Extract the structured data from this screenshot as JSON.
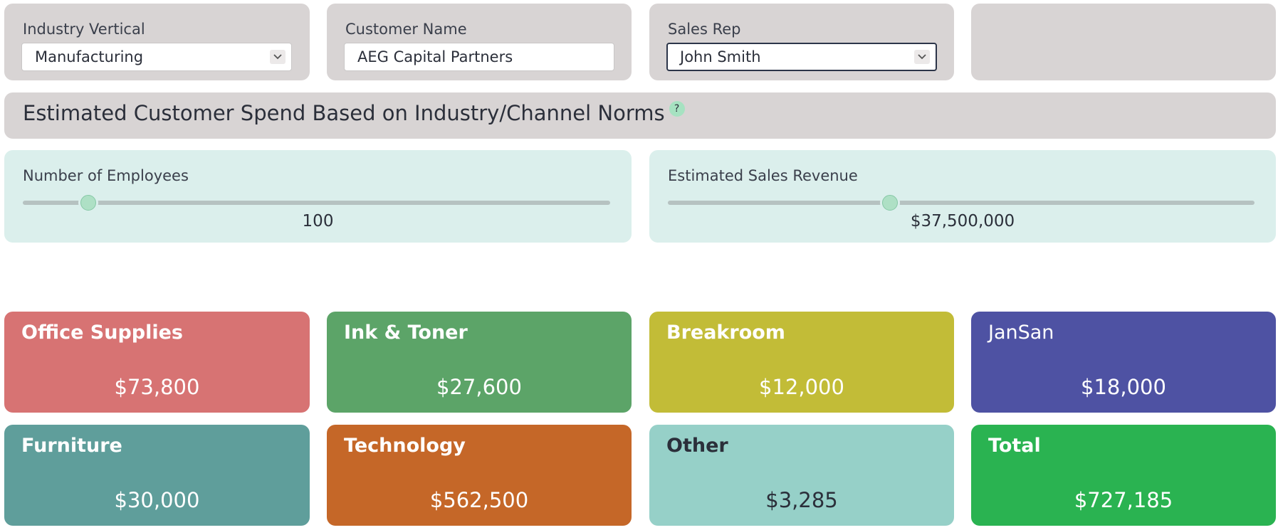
{
  "filters": {
    "industry": {
      "label": "Industry Vertical",
      "value": "Manufacturing"
    },
    "customer": {
      "label": "Customer Name",
      "value": "AEG Capital Partners"
    },
    "rep": {
      "label": "Sales Rep",
      "value": "John Smith"
    }
  },
  "banner": {
    "title": "Estimated Customer Spend Based on Industry/Channel Norms",
    "help": "?"
  },
  "sliders": {
    "employees": {
      "label": "Number of Employees",
      "value_text": "100",
      "fraction": 0.11
    },
    "revenue": {
      "label": "Estimated Sales Revenue",
      "value_text": "$37,500,000",
      "fraction": 0.378
    }
  },
  "cards": [
    {
      "title": "Office Supplies",
      "value": "$73,800",
      "color": "#d77373"
    },
    {
      "title": "Ink & Toner",
      "value": "$27,600",
      "color": "#5ca468"
    },
    {
      "title": "Breakroom",
      "value": "$12,000",
      "color": "#c2bc37"
    },
    {
      "title": "JanSan",
      "value": "$18,000",
      "color": "#4e52a3"
    },
    {
      "title": "Furniture",
      "value": "$30,000",
      "color": "#5f9e9b"
    },
    {
      "title": "Technology",
      "value": "$562,500",
      "color": "#c56728"
    },
    {
      "title": "Other",
      "value": "$3,285",
      "color": "#96d0c8"
    },
    {
      "title": "Total",
      "value": "$727,185",
      "color": "#2ab351"
    }
  ],
  "icons": {
    "dropdown": "chevron-down-icon",
    "help": "help-icon"
  }
}
